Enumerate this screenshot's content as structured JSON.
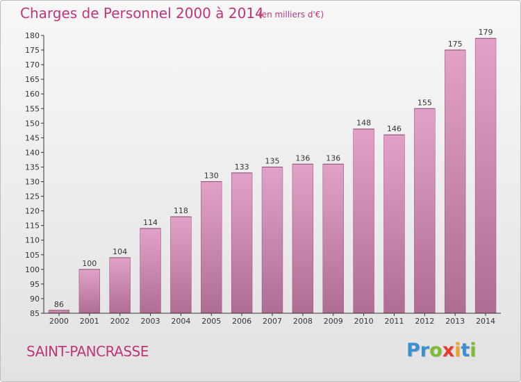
{
  "header": {
    "title": "Charges de Personnel 2000 à 2014",
    "subtitle": "(en milliers d'€)"
  },
  "footer": {
    "place": "SAINT-PANCRASSE",
    "logo": {
      "letters": [
        "P",
        "r",
        "o",
        "x",
        "i",
        "t",
        "i"
      ],
      "colors": [
        "#3a8fd0",
        "#3a8fd0",
        "#7cbd2e",
        "#e53b2c",
        "#f2a21c",
        "#3a8fd0",
        "#7cbd2e"
      ]
    }
  },
  "colors": {
    "bar_top": "#e2a2c8",
    "bar_bottom": "#b06d93",
    "text_accent": "#c0357a"
  },
  "chart_data": {
    "type": "bar",
    "categories": [
      "2000",
      "2001",
      "2002",
      "2003",
      "2004",
      "2005",
      "2006",
      "2007",
      "2008",
      "2009",
      "2010",
      "2011",
      "2012",
      "2013",
      "2014"
    ],
    "values": [
      86,
      100,
      104,
      114,
      118,
      130,
      133,
      135,
      136,
      136,
      148,
      146,
      155,
      175,
      179
    ],
    "data_labels": [
      "86",
      "100",
      "104",
      "114",
      "118",
      "130",
      "133",
      "135",
      "136",
      "136",
      "148",
      "146",
      "155",
      "175",
      "179"
    ],
    "ylim": [
      85,
      180
    ],
    "yticks": [
      85,
      90,
      95,
      100,
      105,
      110,
      115,
      120,
      125,
      130,
      135,
      140,
      145,
      150,
      155,
      160,
      165,
      170,
      175,
      180
    ],
    "ytick_labels": [
      "85",
      "90",
      "95",
      "100",
      "105",
      "110",
      "115",
      "120",
      "125",
      "130",
      "135",
      "140",
      "145",
      "150",
      "155",
      "160",
      "165",
      "170",
      "175",
      "180"
    ],
    "grid": false,
    "legend": "none"
  }
}
